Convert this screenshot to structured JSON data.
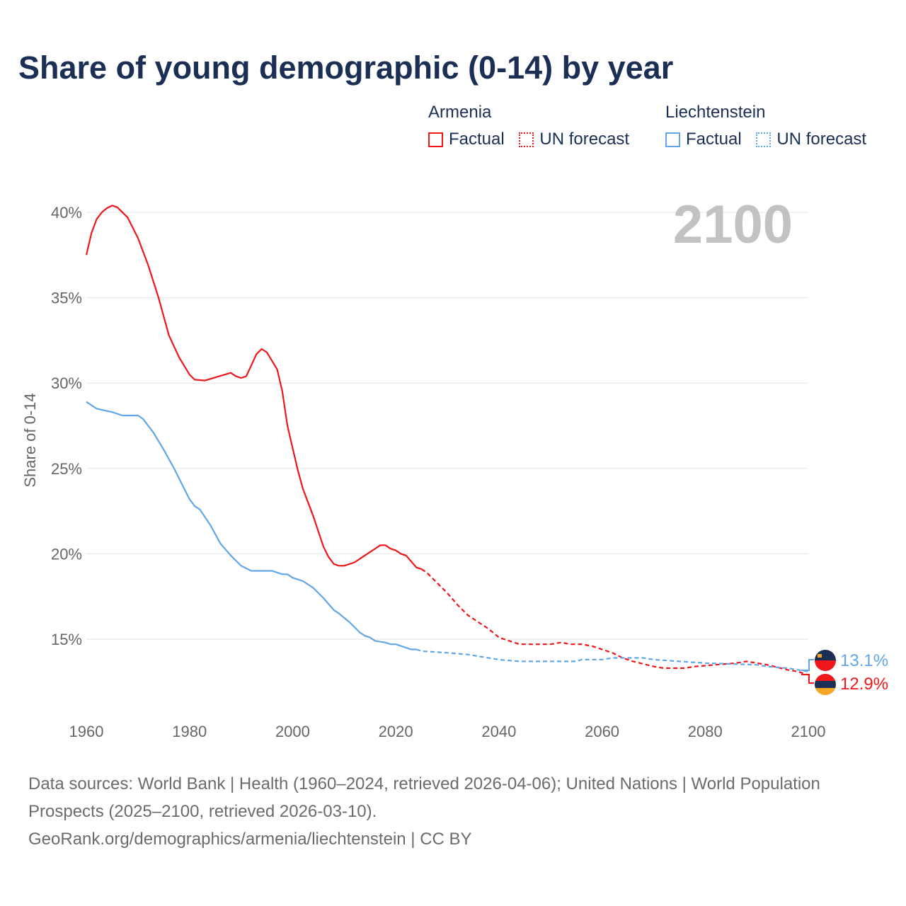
{
  "title": "Share of young demographic (0-14) by year",
  "legend": [
    {
      "country": "Armenia",
      "factual": "Factual",
      "forecast": "UN forecast",
      "color": "#f0171b"
    },
    {
      "country": "Liechtenstein",
      "factual": "Factual",
      "forecast": "UN forecast",
      "color": "#62a6ea"
    }
  ],
  "year_label": "2100",
  "end_labels": {
    "liechtenstein": "13.1%",
    "armenia": "12.9%"
  },
  "footer": {
    "line1": "Data sources: World Bank | Health (1960–2024, retrieved 2026-04-06); United Nations | World Population Prospects (2025–2100, retrieved 2026-03-10).",
    "line2": "GeoRank.org/demographics/armenia/liechtenstein | CC BY"
  },
  "chart_data": {
    "type": "line",
    "title": "Share of young demographic (0-14) by year",
    "xlabel": "",
    "ylabel": "Share of 0-14",
    "xlim": [
      1960,
      2100
    ],
    "ylim": [
      11.5,
      41
    ],
    "xticks": [
      "1960",
      "1980",
      "2000",
      "2020",
      "2040",
      "2060",
      "2080",
      "2100"
    ],
    "yticks": [
      {
        "v": 15,
        "label": "15%"
      },
      {
        "v": 20,
        "label": "20%"
      },
      {
        "v": 25,
        "label": "25%"
      },
      {
        "v": 30,
        "label": "30%"
      },
      {
        "v": 35,
        "label": "35%"
      },
      {
        "v": 40,
        "label": "40%"
      }
    ],
    "grid": true,
    "legend_position": "top-right",
    "series": [
      {
        "name": "Armenia",
        "kind": "factual",
        "color": "#f0171b",
        "points": [
          [
            1960,
            37.5
          ],
          [
            1961,
            38.8
          ],
          [
            1962,
            39.6
          ],
          [
            1963,
            40.0
          ],
          [
            1964,
            40.25
          ],
          [
            1965,
            40.4
          ],
          [
            1966,
            40.3
          ],
          [
            1968,
            39.7
          ],
          [
            1970,
            38.5
          ],
          [
            1972,
            36.9
          ],
          [
            1974,
            35.0
          ],
          [
            1976,
            32.8
          ],
          [
            1978,
            31.5
          ],
          [
            1980,
            30.5
          ],
          [
            1981,
            30.2
          ],
          [
            1983,
            30.15
          ],
          [
            1988,
            30.6
          ],
          [
            1989,
            30.4
          ],
          [
            1990,
            30.3
          ],
          [
            1991,
            30.4
          ],
          [
            1993,
            31.7
          ],
          [
            1994,
            32.0
          ],
          [
            1995,
            31.8
          ],
          [
            1997,
            30.8
          ],
          [
            1998,
            29.5
          ],
          [
            1999,
            27.5
          ],
          [
            2000,
            26.2
          ],
          [
            2001,
            24.9
          ],
          [
            2002,
            23.8
          ],
          [
            2004,
            22.2
          ],
          [
            2006,
            20.4
          ],
          [
            2007,
            19.8
          ],
          [
            2008,
            19.4
          ],
          [
            2009,
            19.3
          ],
          [
            2010,
            19.3
          ],
          [
            2012,
            19.5
          ],
          [
            2014,
            19.9
          ],
          [
            2016,
            20.3
          ],
          [
            2017,
            20.5
          ],
          [
            2018,
            20.5
          ],
          [
            2019,
            20.3
          ],
          [
            2020,
            20.2
          ],
          [
            2021,
            20.0
          ],
          [
            2022,
            19.9
          ],
          [
            2024,
            19.2
          ],
          [
            2025,
            19.1
          ]
        ]
      },
      {
        "name": "Armenia",
        "kind": "forecast",
        "color": "#f0171b",
        "points": [
          [
            2025,
            19.1
          ],
          [
            2026,
            18.9
          ],
          [
            2028,
            18.3
          ],
          [
            2030,
            17.7
          ],
          [
            2032,
            17.0
          ],
          [
            2034,
            16.4
          ],
          [
            2036,
            16.0
          ],
          [
            2038,
            15.6
          ],
          [
            2040,
            15.1
          ],
          [
            2042,
            14.9
          ],
          [
            2044,
            14.7
          ],
          [
            2050,
            14.7
          ],
          [
            2052,
            14.8
          ],
          [
            2054,
            14.7
          ],
          [
            2056,
            14.7
          ],
          [
            2058,
            14.6
          ],
          [
            2060,
            14.4
          ],
          [
            2062,
            14.2
          ],
          [
            2064,
            13.9
          ],
          [
            2066,
            13.7
          ],
          [
            2070,
            13.4
          ],
          [
            2072,
            13.3
          ],
          [
            2076,
            13.3
          ],
          [
            2078,
            13.4
          ],
          [
            2082,
            13.5
          ],
          [
            2086,
            13.6
          ],
          [
            2088,
            13.7
          ],
          [
            2090,
            13.6
          ],
          [
            2092,
            13.5
          ],
          [
            2096,
            13.2
          ],
          [
            2098,
            13.1
          ],
          [
            2100,
            12.9
          ]
        ]
      },
      {
        "name": "Liechtenstein",
        "kind": "factual",
        "color": "#62a6ea",
        "points": [
          [
            1960,
            28.9
          ],
          [
            1962,
            28.5
          ],
          [
            1965,
            28.3
          ],
          [
            1967,
            28.1
          ],
          [
            1970,
            28.1
          ],
          [
            1971,
            27.9
          ],
          [
            1973,
            27.1
          ],
          [
            1975,
            26.1
          ],
          [
            1977,
            25.0
          ],
          [
            1979,
            23.8
          ],
          [
            1980,
            23.2
          ],
          [
            1981,
            22.8
          ],
          [
            1982,
            22.6
          ],
          [
            1984,
            21.7
          ],
          [
            1986,
            20.6
          ],
          [
            1988,
            19.9
          ],
          [
            1989,
            19.6
          ],
          [
            1990,
            19.3
          ],
          [
            1992,
            19.0
          ],
          [
            1996,
            19.0
          ],
          [
            1998,
            18.8
          ],
          [
            1999,
            18.8
          ],
          [
            2000,
            18.6
          ],
          [
            2002,
            18.4
          ],
          [
            2004,
            18.0
          ],
          [
            2006,
            17.4
          ],
          [
            2008,
            16.7
          ],
          [
            2009,
            16.5
          ],
          [
            2011,
            16.0
          ],
          [
            2012,
            15.7
          ],
          [
            2013,
            15.4
          ],
          [
            2014,
            15.2
          ],
          [
            2015,
            15.1
          ],
          [
            2016,
            14.9
          ],
          [
            2018,
            14.8
          ],
          [
            2019,
            14.7
          ],
          [
            2020,
            14.7
          ],
          [
            2022,
            14.5
          ],
          [
            2023,
            14.4
          ],
          [
            2024,
            14.4
          ]
        ]
      },
      {
        "name": "Liechtenstein",
        "kind": "forecast",
        "color": "#62a6ea",
        "points": [
          [
            2024,
            14.4
          ],
          [
            2025,
            14.3
          ],
          [
            2030,
            14.2
          ],
          [
            2034,
            14.1
          ],
          [
            2036,
            14.0
          ],
          [
            2040,
            13.8
          ],
          [
            2044,
            13.7
          ],
          [
            2055,
            13.7
          ],
          [
            2056,
            13.8
          ],
          [
            2060,
            13.8
          ],
          [
            2062,
            13.9
          ],
          [
            2068,
            13.9
          ],
          [
            2070,
            13.8
          ],
          [
            2075,
            13.7
          ],
          [
            2080,
            13.6
          ],
          [
            2090,
            13.5
          ],
          [
            2092,
            13.4
          ],
          [
            2096,
            13.3
          ],
          [
            2100,
            13.1
          ]
        ]
      }
    ]
  }
}
